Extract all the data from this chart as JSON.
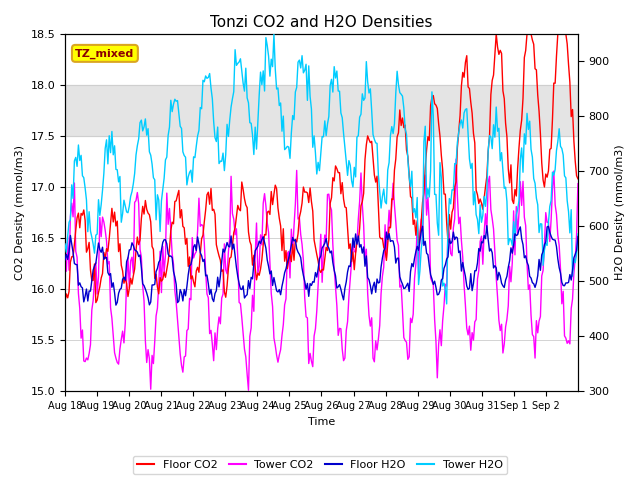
{
  "title": "Tonzi CO2 and H2O Densities",
  "xlabel": "Time",
  "ylabel_left": "CO2 Density (mmol/m3)",
  "ylabel_right": "H2O Density (mmol/m3)",
  "ylim_left": [
    15.0,
    18.5
  ],
  "ylim_right": [
    300,
    950
  ],
  "annotation_text": "TZ_mixed",
  "shaded_region": [
    17.5,
    18.0
  ],
  "xtick_labels": [
    "Aug 18",
    "Aug 19",
    "Aug 20",
    "Aug 21",
    "Aug 22",
    "Aug 23",
    "Aug 24",
    "Aug 25",
    "Aug 26",
    "Aug 27",
    "Aug 28",
    "Aug 29",
    "Aug 30",
    "Aug 31",
    "Sep 1",
    "Sep 2"
  ],
  "colors": {
    "floor_co2": "#FF0000",
    "tower_co2": "#FF00FF",
    "floor_h2o": "#0000CC",
    "tower_h2o": "#00CCFF"
  },
  "background_color": "#ffffff",
  "grid_color": "#cccccc",
  "figsize": [
    6.4,
    4.8
  ],
  "dpi": 100
}
